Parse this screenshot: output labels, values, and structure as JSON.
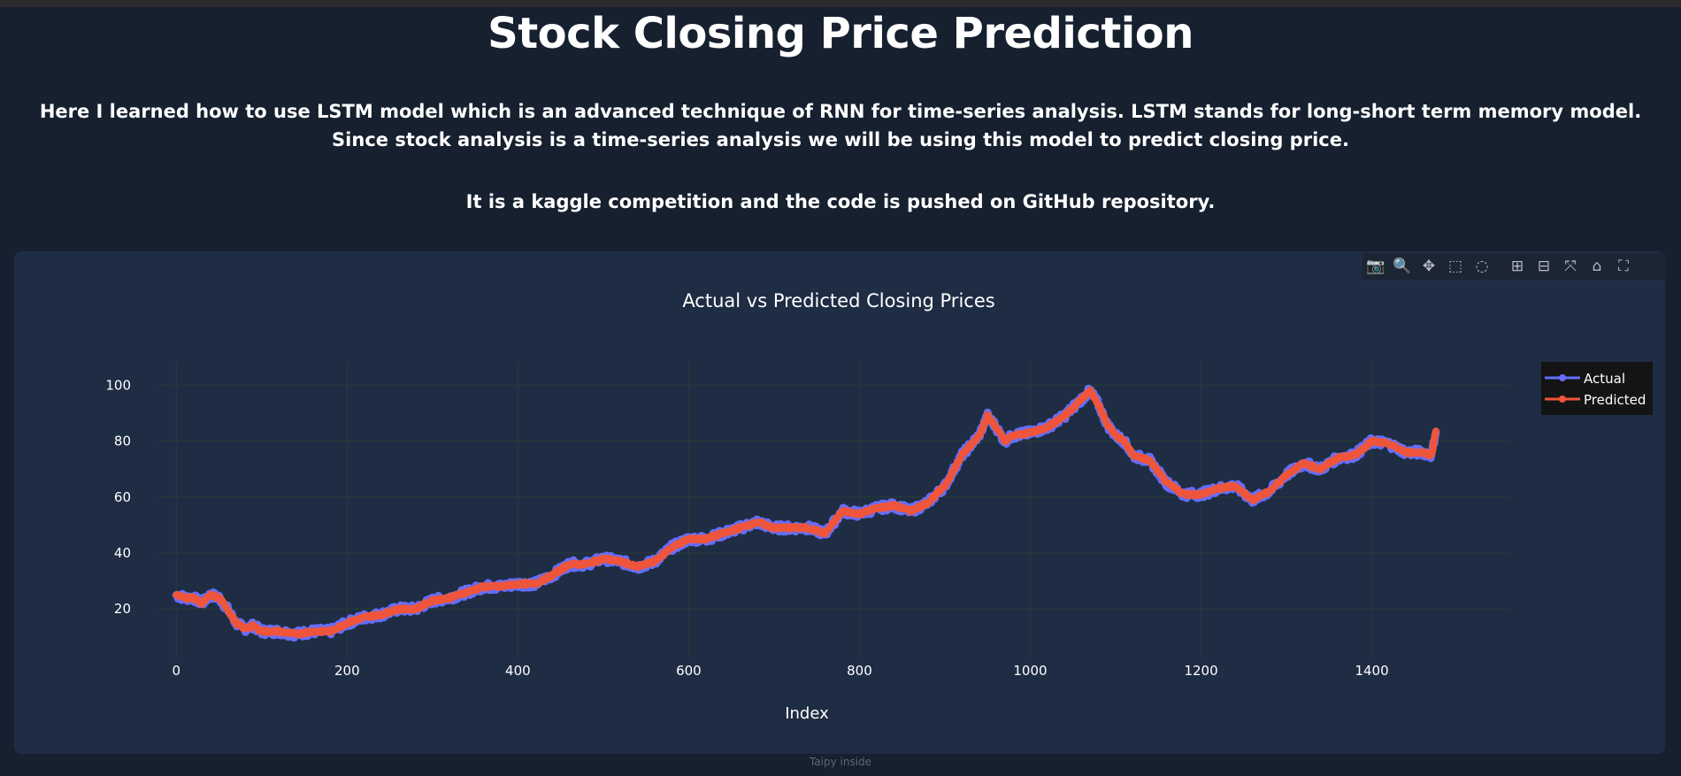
{
  "page": {
    "title": "Stock Closing Price Prediction",
    "intro_1": "Here I learned how to use LSTM model which is an advanced technique of RNN for time-series analysis. LSTM stands for long-short term memory model. Since stock analysis is a time-series analysis we will be using this model to predict closing price.",
    "intro_2": "It is a kaggle competition and the code is pushed on GitHub repository.",
    "footer": "Taipy inside"
  },
  "modebar": {
    "buttons": [
      {
        "name": "camera-icon",
        "glyph": "📷"
      },
      {
        "name": "zoom-icon",
        "glyph": "🔍"
      },
      {
        "name": "pan-icon",
        "glyph": "✥"
      },
      {
        "name": "box-select-icon",
        "glyph": "⬚"
      },
      {
        "name": "lasso-select-icon",
        "glyph": "◌"
      },
      {
        "name": "zoom-in-icon",
        "glyph": "⊞"
      },
      {
        "name": "zoom-out-icon",
        "glyph": "⊟"
      },
      {
        "name": "autoscale-icon",
        "glyph": "⤧"
      },
      {
        "name": "reset-axes-icon",
        "glyph": "⌂"
      },
      {
        "name": "fullscreen-icon",
        "glyph": "⛶"
      }
    ]
  },
  "colors": {
    "actual": "#636efa",
    "predicted": "#ef553b",
    "background": "#16202f",
    "plot_bg": "#1e2d44",
    "grid": "#283c34"
  },
  "chart_data": {
    "type": "line",
    "title": "Actual vs Predicted Closing Prices",
    "xlabel": "Index",
    "ylabel": "",
    "xlim": [
      -20,
      1560
    ],
    "ylim": [
      3,
      108
    ],
    "xticks": [
      0,
      200,
      400,
      600,
      800,
      1000,
      1200,
      1400
    ],
    "yticks": [
      20,
      40,
      60,
      80,
      100
    ],
    "grid": true,
    "legend_position": "top-right",
    "anchors": {
      "x": [
        0,
        10,
        20,
        30,
        40,
        50,
        60,
        70,
        80,
        90,
        100,
        120,
        140,
        160,
        180,
        200,
        220,
        240,
        260,
        280,
        300,
        320,
        340,
        360,
        380,
        400,
        420,
        440,
        460,
        480,
        500,
        520,
        540,
        560,
        580,
        600,
        620,
        640,
        660,
        680,
        700,
        720,
        740,
        760,
        780,
        800,
        820,
        840,
        860,
        880,
        900,
        920,
        940,
        950,
        960,
        970,
        980,
        1000,
        1020,
        1040,
        1060,
        1070,
        1080,
        1090,
        1100,
        1110,
        1120,
        1140,
        1160,
        1180,
        1200,
        1220,
        1240,
        1260,
        1280,
        1300,
        1320,
        1340,
        1360,
        1380,
        1400,
        1420,
        1440,
        1460,
        1470,
        1475
      ],
      "y": [
        25,
        24,
        24,
        22,
        25,
        24,
        20,
        15,
        13,
        14,
        12,
        12,
        11,
        12,
        12,
        15,
        17,
        18,
        20,
        20,
        23,
        24,
        26,
        28,
        28,
        29,
        29,
        32,
        36,
        36,
        38,
        37,
        35,
        37,
        42,
        45,
        45,
        47,
        49,
        51,
        49,
        49,
        49,
        47,
        55,
        54,
        56,
        57,
        55,
        58,
        64,
        75,
        82,
        89,
        85,
        80,
        82,
        83,
        85,
        89,
        95,
        98,
        93,
        86,
        82,
        80,
        75,
        73,
        65,
        61,
        61,
        63,
        64,
        59,
        62,
        68,
        72,
        70,
        74,
        75,
        80,
        79,
        76,
        76,
        75,
        84
      ]
    },
    "series": [
      {
        "name": "Actual",
        "jitter": 1.4
      },
      {
        "name": "Predicted",
        "jitter": 0.5
      }
    ]
  }
}
